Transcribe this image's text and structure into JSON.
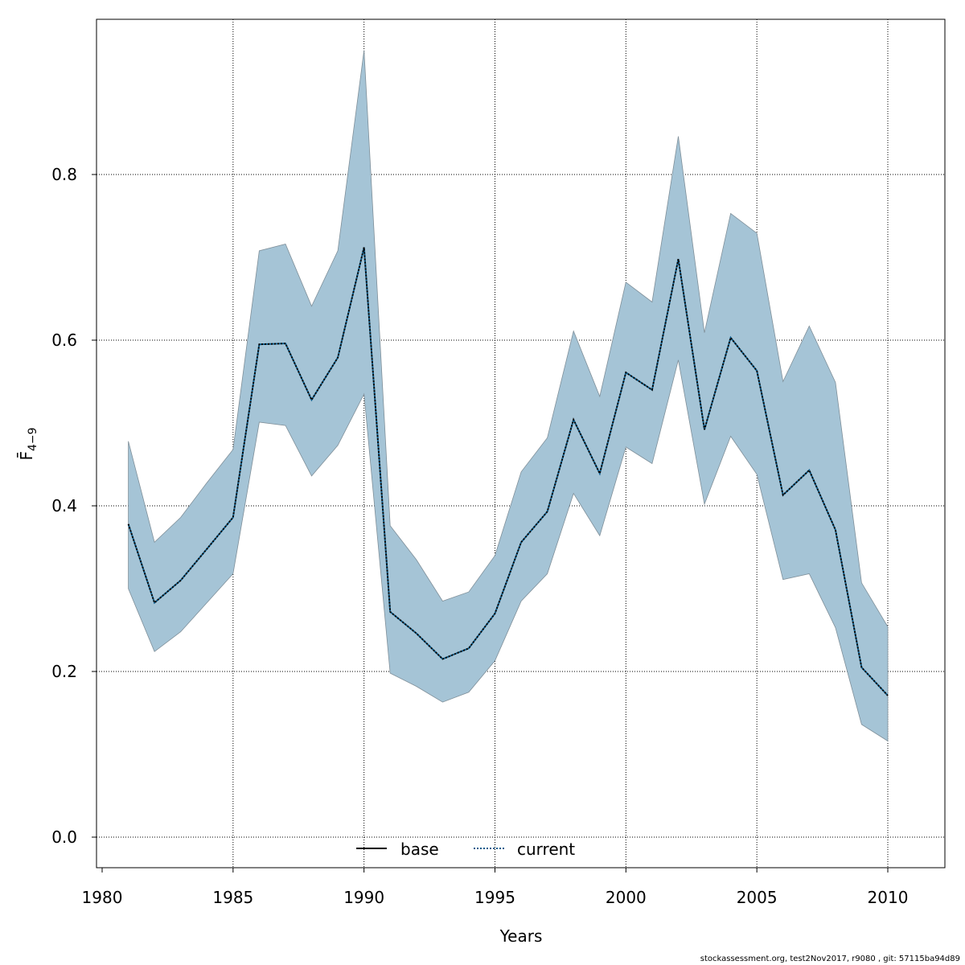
{
  "chart_data": {
    "type": "line",
    "title": "",
    "xlabel": "Years",
    "ylabel": "F̄",
    "ylabel_subscript": "4−9",
    "xlim": [
      1980,
      2011
    ],
    "ylim": [
      0.0,
      0.95
    ],
    "x_ticks": [
      "1980",
      "1985",
      "1990",
      "1995",
      "2000",
      "2005",
      "2010"
    ],
    "y_ticks": [
      "0.0",
      "0.2",
      "0.4",
      "0.6",
      "0.8"
    ],
    "grid": true,
    "x": [
      1981,
      1982,
      1983,
      1984,
      1985,
      1986,
      1987,
      1988,
      1989,
      1990,
      1991,
      1992,
      1993,
      1994,
      1995,
      1996,
      1997,
      1998,
      1999,
      2000,
      2001,
      2002,
      2003,
      2004,
      2005,
      2006,
      2007,
      2008,
      2009,
      2010
    ],
    "series": [
      {
        "name": "current",
        "style": "dotted",
        "values": [
          0.378,
          0.283,
          0.31,
          0.348,
          0.386,
          0.595,
          0.596,
          0.528,
          0.579,
          0.712,
          0.272,
          0.246,
          0.215,
          0.228,
          0.27,
          0.356,
          0.393,
          0.504,
          0.439,
          0.561,
          0.54,
          0.698,
          0.492,
          0.603,
          0.563,
          0.413,
          0.443,
          0.371,
          0.205,
          0.171
        ]
      }
    ],
    "band": {
      "upper": [
        0.478,
        0.356,
        0.386,
        0.428,
        0.468,
        0.708,
        0.716,
        0.641,
        0.708,
        0.95,
        0.376,
        0.335,
        0.285,
        0.296,
        0.34,
        0.441,
        0.482,
        0.611,
        0.532,
        0.67,
        0.646,
        0.846,
        0.609,
        0.753,
        0.729,
        0.55,
        0.617,
        0.549,
        0.307,
        0.254
      ],
      "lower": [
        0.3,
        0.224,
        0.248,
        0.283,
        0.318,
        0.501,
        0.497,
        0.436,
        0.473,
        0.535,
        0.198,
        0.182,
        0.163,
        0.175,
        0.213,
        0.285,
        0.318,
        0.415,
        0.364,
        0.471,
        0.451,
        0.576,
        0.402,
        0.484,
        0.438,
        0.311,
        0.318,
        0.253,
        0.136,
        0.116
      ]
    },
    "legend": {
      "position": "bottom",
      "entries": [
        {
          "label": "base",
          "style": "solid"
        },
        {
          "label": "current",
          "style": "dotted"
        }
      ]
    },
    "colors": {
      "band": "#a5c4d6",
      "band_edge": "#7f8f99",
      "line_primary": "#000000",
      "line_secondary": "#0a5c8c"
    }
  },
  "footer": {
    "text": "stockassessment.org, test2Nov2017, r9080 , git: 57115ba94d89"
  }
}
